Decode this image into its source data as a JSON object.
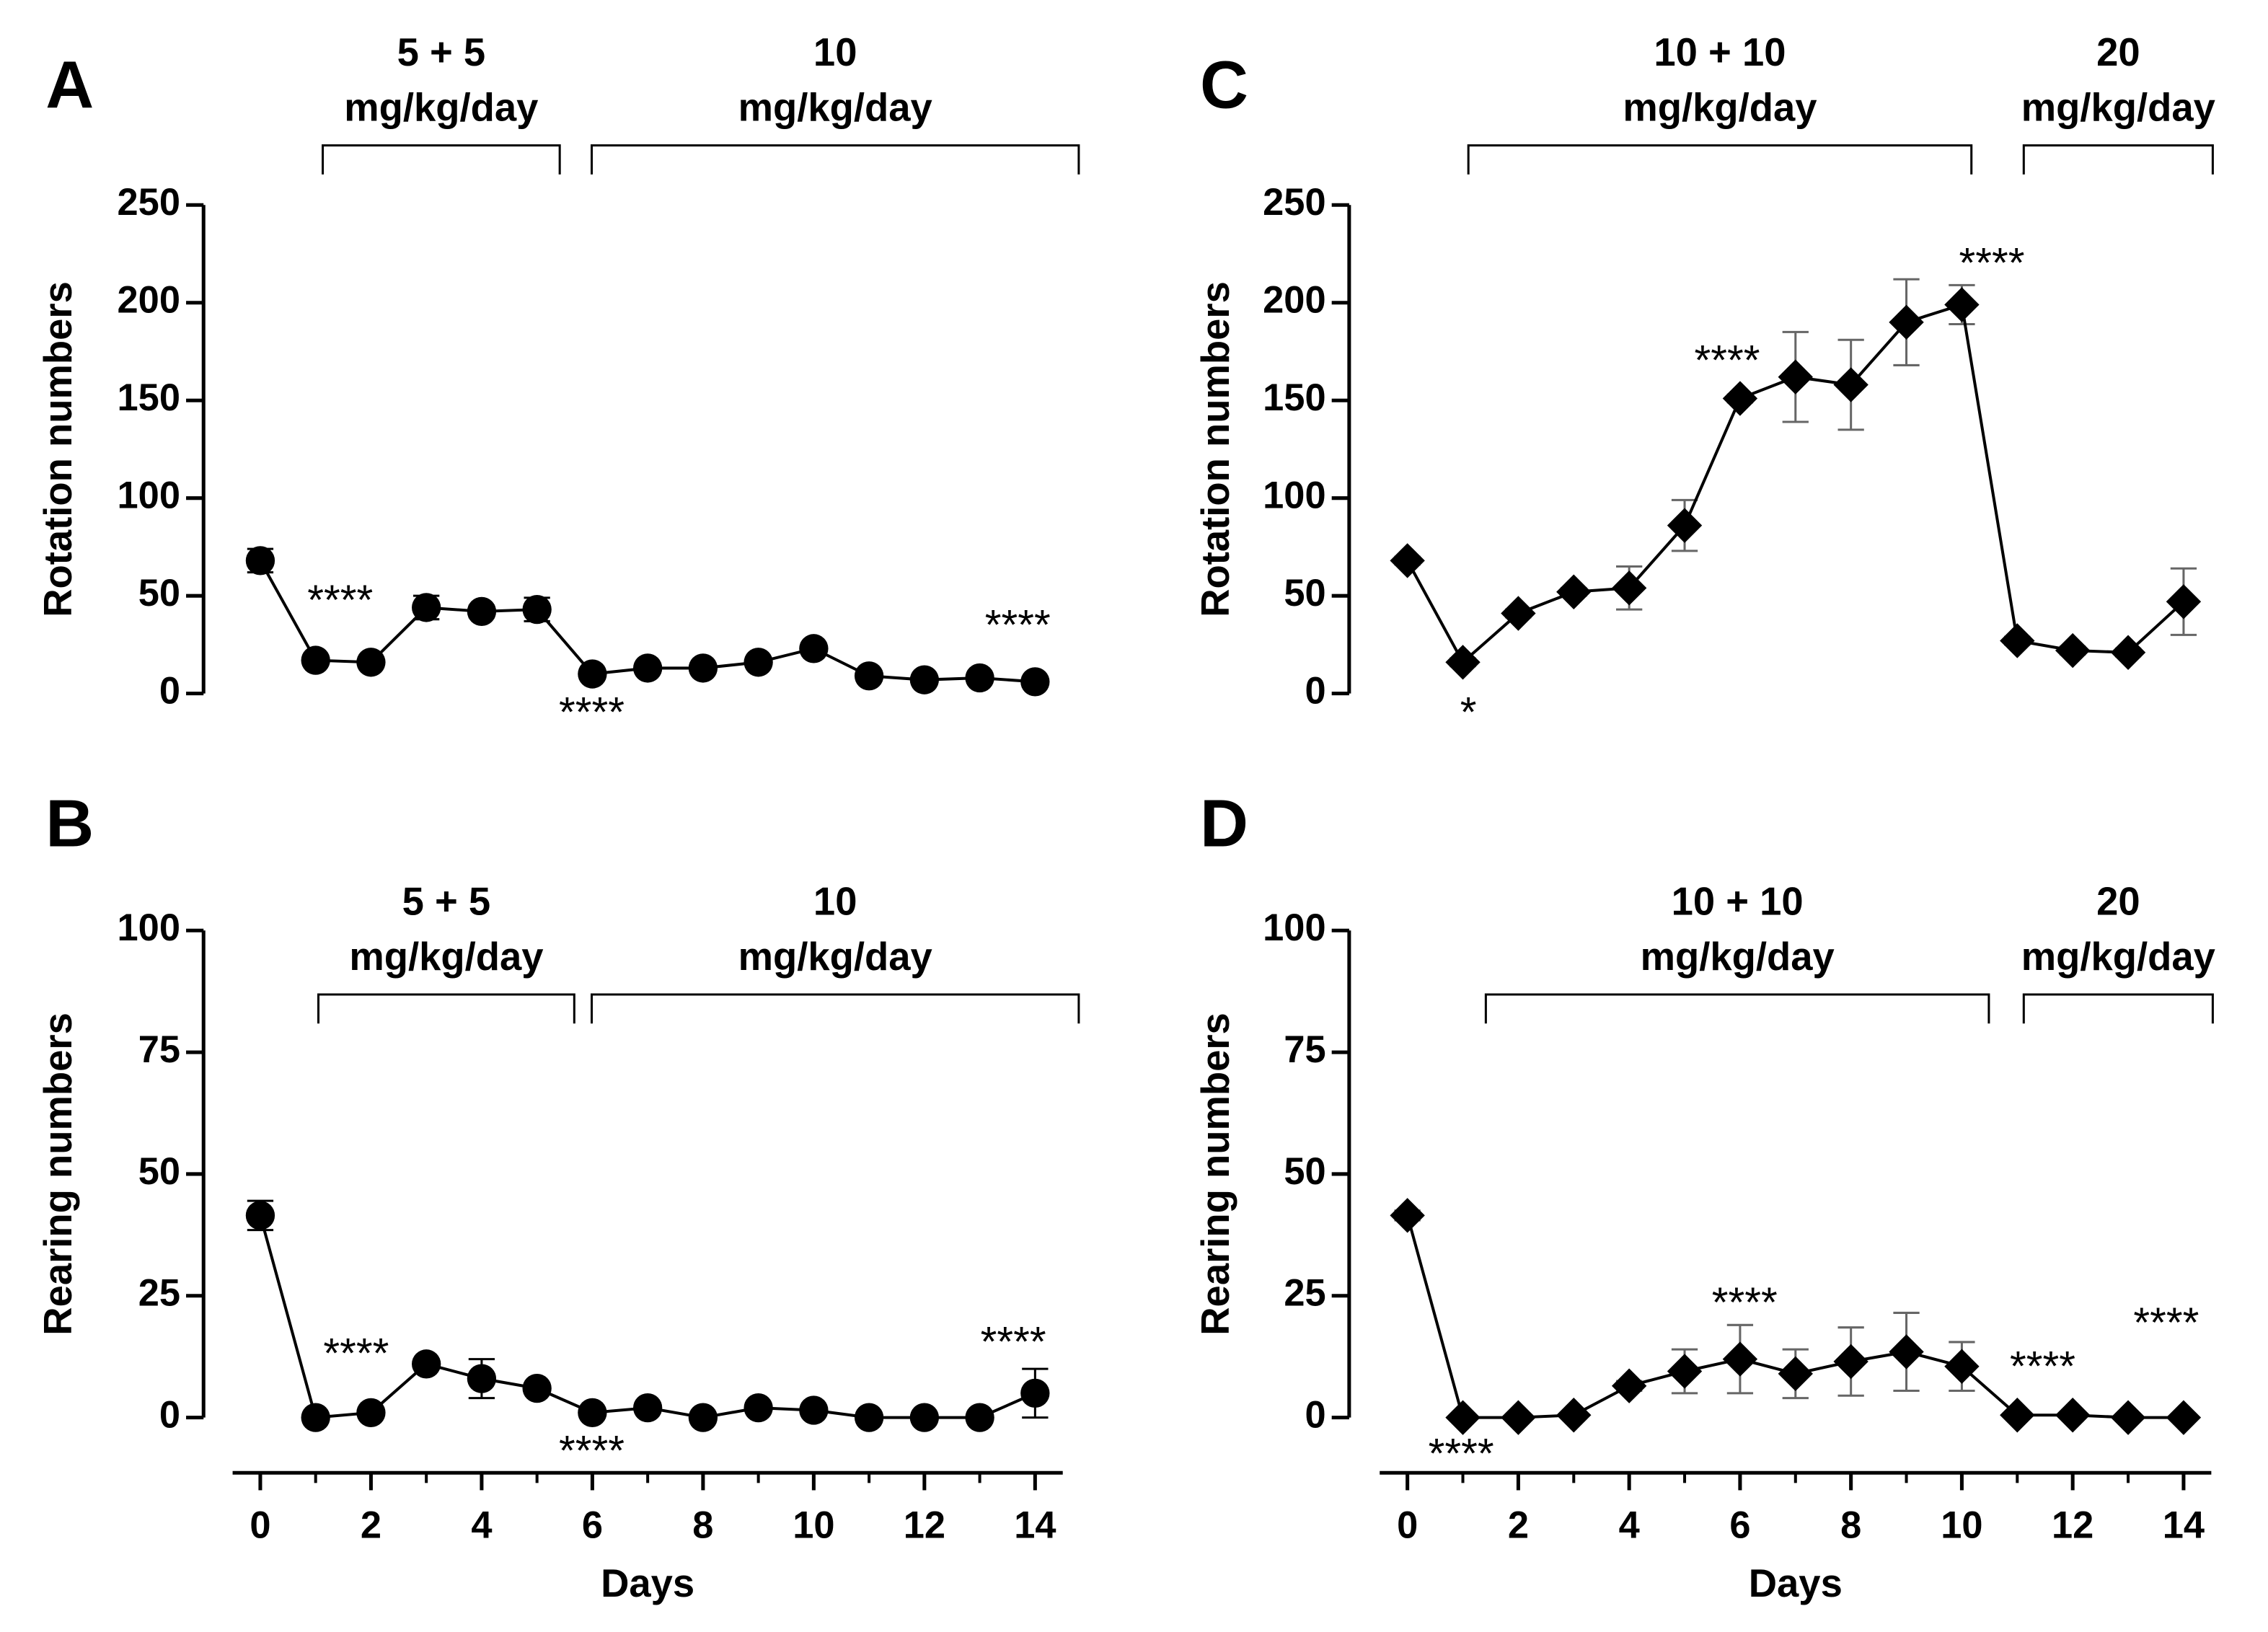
{
  "chart_data": [
    {
      "type": "line",
      "panel": "A",
      "ylabel": "Rotation numbers",
      "x": [
        0,
        1,
        2,
        3,
        4,
        5,
        6,
        7,
        8,
        9,
        10,
        11,
        12,
        13,
        14
      ],
      "values": [
        68,
        17,
        16,
        44,
        42,
        43,
        10,
        13,
        13,
        16,
        23,
        9,
        7,
        8,
        6
      ],
      "errors": [
        6,
        2,
        2,
        6,
        3,
        6,
        2,
        2,
        2,
        2,
        2,
        2,
        1,
        2,
        1
      ],
      "color": "#000000",
      "error_color": "#000000",
      "marker": "circle",
      "xlim": [
        -0.5,
        14.5
      ],
      "ylim": [
        0,
        250
      ],
      "yticks": [
        0,
        50,
        100,
        150,
        200,
        250
      ],
      "dose_labels": [
        [
          "5 + 5",
          "mg/kg/day"
        ],
        [
          "10",
          "mg/kg/day"
        ]
      ],
      "annotations": [
        "****",
        "****",
        "****"
      ]
    },
    {
      "type": "line",
      "panel": "B",
      "ylabel": "Rearing numbers",
      "xlabel": "Days",
      "x": [
        0,
        1,
        2,
        3,
        4,
        5,
        6,
        7,
        8,
        9,
        10,
        11,
        12,
        13,
        14
      ],
      "values": [
        41.5,
        0,
        1,
        11,
        8,
        6,
        1,
        2,
        0,
        2,
        1.5,
        0,
        0,
        0,
        5
      ],
      "errors": [
        3,
        0.5,
        0.5,
        1,
        4,
        1,
        0.5,
        0.5,
        0,
        0.5,
        0.5,
        0,
        0,
        0,
        5
      ],
      "color": "#000000",
      "error_color": "#000000",
      "marker": "circle",
      "xlim": [
        -0.5,
        14.5
      ],
      "xticks": [
        0,
        2,
        4,
        6,
        8,
        10,
        12,
        14
      ],
      "ylim": [
        0,
        100
      ],
      "yticks": [
        0,
        25,
        50,
        75,
        100
      ],
      "dose_labels": [
        [
          "5 + 5",
          "mg/kg/day"
        ],
        [
          "10",
          "mg/kg/day"
        ]
      ],
      "annotations": [
        "****",
        "****",
        "****"
      ]
    },
    {
      "type": "line",
      "panel": "C",
      "ylabel": "Rotation numbers",
      "x": [
        0,
        1,
        2,
        3,
        4,
        5,
        6,
        7,
        8,
        9,
        10,
        11,
        12,
        13,
        14
      ],
      "values": [
        68,
        16,
        41,
        52,
        54,
        86,
        151,
        162,
        158,
        190,
        199,
        27,
        22,
        21,
        47
      ],
      "errors": [
        2,
        2,
        2,
        2,
        11,
        13,
        2,
        23,
        23,
        22,
        10,
        2,
        2,
        2,
        17
      ],
      "color": "#000000",
      "error_color": "#666666",
      "marker": "diamond",
      "xlim": [
        -0.5,
        14.5
      ],
      "ylim": [
        0,
        250
      ],
      "yticks": [
        0,
        50,
        100,
        150,
        200,
        250
      ],
      "dose_labels": [
        [
          "10 + 10",
          "mg/kg/day"
        ],
        [
          "20",
          "mg/kg/day"
        ]
      ],
      "annotations": [
        "*",
        "****",
        "****"
      ]
    },
    {
      "type": "line",
      "panel": "D",
      "ylabel": "Rearing numbers",
      "xlabel": "Days",
      "x": [
        0,
        1,
        2,
        3,
        4,
        5,
        6,
        7,
        8,
        9,
        10,
        11,
        12,
        13,
        14
      ],
      "values": [
        41.5,
        0,
        0,
        0.5,
        6.5,
        9.5,
        12,
        9,
        11.5,
        13.5,
        10.5,
        0.5,
        0.5,
        0,
        0
      ],
      "errors": [
        1,
        0,
        0,
        0.5,
        1,
        4.5,
        7,
        5,
        7,
        8,
        5,
        0.5,
        0.5,
        0,
        0
      ],
      "color": "#000000",
      "error_color": "#666666",
      "marker": "diamond",
      "xlim": [
        -0.5,
        14.5
      ],
      "xticks": [
        0,
        2,
        4,
        6,
        8,
        10,
        12,
        14
      ],
      "ylim": [
        0,
        100
      ],
      "yticks": [
        0,
        25,
        50,
        75,
        100
      ],
      "dose_labels": [
        [
          "10 + 10",
          "mg/kg/day"
        ],
        [
          "20",
          "mg/kg/day"
        ]
      ],
      "annotations": [
        "****",
        "****",
        "****",
        "****"
      ]
    }
  ]
}
